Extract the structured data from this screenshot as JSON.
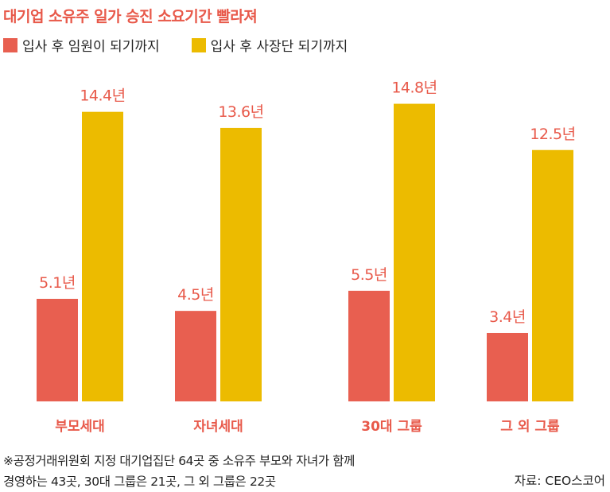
{
  "title": "대기업 소유주 일가 승진 소요기간 빨라져",
  "legend": [
    {
      "label": "입사 후 임원이 되기까지",
      "color": "#e85f50"
    },
    {
      "label": "입사 후 사장단 되기까지",
      "color": "#ecbb00"
    }
  ],
  "chart_data": {
    "type": "bar",
    "categories": [
      "부모세대",
      "자녀세대",
      "30대 그룹",
      "그 외 그룹"
    ],
    "series": [
      {
        "name": "입사 후 임원이 되기까지",
        "values": [
          5.1,
          4.5,
          5.5,
          3.4
        ],
        "labels": [
          "5.1년",
          "4.5년",
          "5.5년",
          "3.4년"
        ],
        "color": "#e85f50"
      },
      {
        "name": "입사 후 사장단 되기까지",
        "values": [
          14.4,
          13.6,
          14.8,
          12.5
        ],
        "labels": [
          "14.4년",
          "13.6년",
          "14.8년",
          "12.5년"
        ],
        "color": "#ecbb00"
      }
    ],
    "ylim": [
      0,
      16
    ],
    "grid": false,
    "legend_position": "top-left",
    "category_label_color": "#e8594a",
    "value_label_color": "#e8594a"
  },
  "footnote": {
    "line1": "※공정거래위원회 지정 대기업집단 64곳 중 소유주 부모와 자녀가 함께",
    "line2": "경영하는 43곳, 30대 그룹은 21곳, 그 외 그룹은 22곳"
  },
  "source": "자료: CEO스코어"
}
